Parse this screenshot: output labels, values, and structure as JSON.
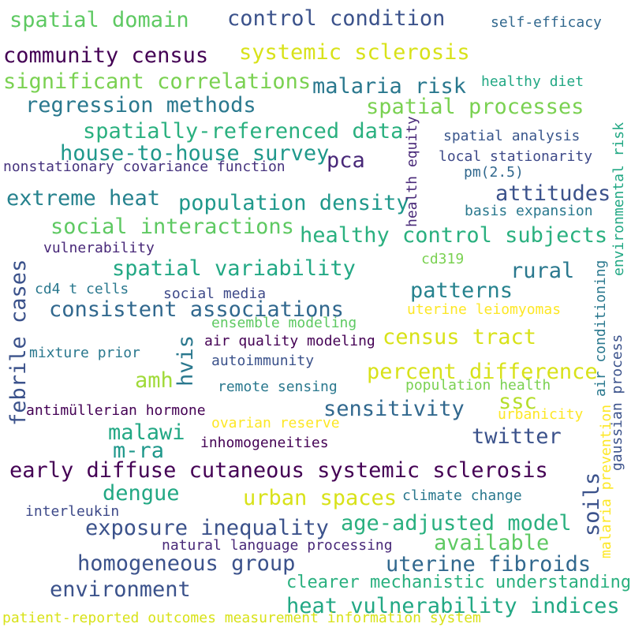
{
  "words": [
    {
      "text": "spatial domain",
      "color": "#5ec962"
    },
    {
      "text": "control condition",
      "color": "#3b528b"
    },
    {
      "text": "self-efficacy",
      "color": "#31688e"
    },
    {
      "text": "community census",
      "color": "#440154"
    },
    {
      "text": "systemic sclerosis",
      "color": "#d8e219"
    },
    {
      "text": "significant correlations",
      "color": "#7ad151"
    },
    {
      "text": "malaria risk",
      "color": "#2a788e"
    },
    {
      "text": "healthy diet",
      "color": "#22a884"
    },
    {
      "text": "regression methods",
      "color": "#2a788e"
    },
    {
      "text": "spatial processes",
      "color": "#7ad151"
    },
    {
      "text": "spatially-referenced data",
      "color": "#2ab07f"
    },
    {
      "text": "spatial analysis",
      "color": "#39568c"
    },
    {
      "text": "house-to-house survey",
      "color": "#1f988b"
    },
    {
      "text": "pca",
      "color": "#482878"
    },
    {
      "text": "local stationarity",
      "color": "#3e4a89"
    },
    {
      "text": "nonstationary covariance function",
      "color": "#46337e"
    },
    {
      "text": "pm(2.5)",
      "color": "#31688e"
    },
    {
      "text": "extreme heat",
      "color": "#26828e"
    },
    {
      "text": "population density",
      "color": "#1f988b"
    },
    {
      "text": "attitudes",
      "color": "#3b528b"
    },
    {
      "text": "basis expansion",
      "color": "#2a788e"
    },
    {
      "text": "social interactions",
      "color": "#5ec962"
    },
    {
      "text": "healthy control subjects",
      "color": "#2ab07f"
    },
    {
      "text": "vulnerability",
      "color": "#482878"
    },
    {
      "text": "cd319",
      "color": "#7ad151"
    },
    {
      "text": "spatial variability",
      "color": "#22a884"
    },
    {
      "text": "rural",
      "color": "#2a788e"
    },
    {
      "text": "cd4 t cells",
      "color": "#2a788e"
    },
    {
      "text": "social media",
      "color": "#3e4a89"
    },
    {
      "text": "patterns",
      "color": "#26828e"
    },
    {
      "text": "consistent associations",
      "color": "#31688e"
    },
    {
      "text": "uterine leiomyomas",
      "color": "#fde725"
    },
    {
      "text": "ensemble modeling",
      "color": "#5ec962"
    },
    {
      "text": "air quality modeling",
      "color": "#440154"
    },
    {
      "text": "census tract",
      "color": "#d8e219"
    },
    {
      "text": "mixture prior",
      "color": "#2a788e"
    },
    {
      "text": "autoimmunity",
      "color": "#3b528b"
    },
    {
      "text": "percent difference",
      "color": "#d8e219"
    },
    {
      "text": "amh",
      "color": "#a0da39"
    },
    {
      "text": "remote sensing",
      "color": "#2a788e"
    },
    {
      "text": "population health",
      "color": "#7ad151"
    },
    {
      "text": "antimüllerian hormone",
      "color": "#440154"
    },
    {
      "text": "sensitivity",
      "color": "#31688e"
    },
    {
      "text": "ssc",
      "color": "#b5de2b"
    },
    {
      "text": "urbanicity",
      "color": "#fde725"
    },
    {
      "text": "ovarian reserve",
      "color": "#fde725"
    },
    {
      "text": "malawi",
      "color": "#22a884"
    },
    {
      "text": "twitter",
      "color": "#3b528b"
    },
    {
      "text": "m-ra",
      "color": "#1f988b"
    },
    {
      "text": "inhomogeneities",
      "color": "#440154"
    },
    {
      "text": "early diffuse cutaneous systemic sclerosis",
      "color": "#440154"
    },
    {
      "text": "dengue",
      "color": "#22a884"
    },
    {
      "text": "urban spaces",
      "color": "#d8e219"
    },
    {
      "text": "climate change",
      "color": "#2a788e"
    },
    {
      "text": "interleukin",
      "color": "#3e4a89"
    },
    {
      "text": "exposure inequality",
      "color": "#3b528b"
    },
    {
      "text": "age-adjusted model",
      "color": "#2ab07f"
    },
    {
      "text": "natural language processing",
      "color": "#482878"
    },
    {
      "text": "available",
      "color": "#5ec962"
    },
    {
      "text": "homogeneous group",
      "color": "#3b528b"
    },
    {
      "text": "uterine fibroids",
      "color": "#31688e"
    },
    {
      "text": "environment",
      "color": "#3b528b"
    },
    {
      "text": "clearer mechanistic understanding",
      "color": "#2ab07f"
    },
    {
      "text": "heat vulnerability indices",
      "color": "#22a884"
    },
    {
      "text": "patient-reported outcomes measurement information system",
      "color": "#d8e219"
    },
    {
      "text": "health equity",
      "color": "#482878"
    },
    {
      "text": "environmental risk",
      "color": "#22a884"
    },
    {
      "text": "febrile cases",
      "color": "#3b528b"
    },
    {
      "text": "hvis",
      "color": "#2a788e"
    },
    {
      "text": "air conditioning",
      "color": "#2a788e"
    },
    {
      "text": "gaussian process",
      "color": "#3b528b"
    },
    {
      "text": "malaria prevention",
      "color": "#fde725"
    },
    {
      "text": "soils",
      "color": "#3b528b"
    }
  ]
}
